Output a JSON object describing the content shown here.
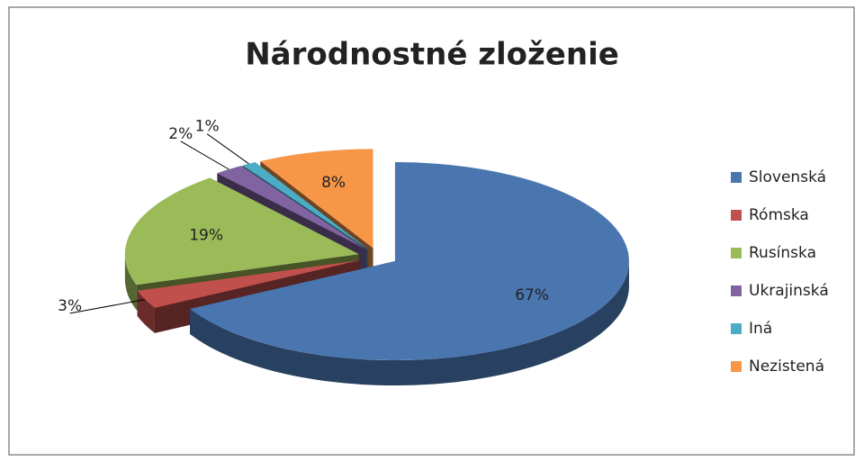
{
  "chart_data": {
    "type": "pie3d",
    "title": "Národnostné zloženie",
    "categories": [
      "Slovenská",
      "Rómska",
      "Rusínska",
      "Ukrajinská",
      "Iná",
      "Nezistená"
    ],
    "values": [
      67,
      3,
      19,
      2,
      1,
      8
    ],
    "value_labels": [
      "67%",
      "3%",
      "19%",
      "2%",
      "1%",
      "8%"
    ],
    "colors": [
      "#4a76b0",
      "#c0504d",
      "#9bbb59",
      "#8064a2",
      "#4bacc6",
      "#f79646"
    ],
    "legend": "right"
  }
}
